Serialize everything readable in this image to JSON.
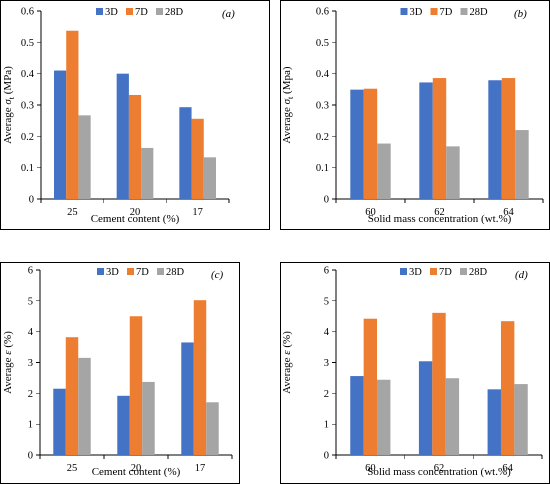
{
  "colors": {
    "3D": "#4472C4",
    "7D": "#ED7D31",
    "28D": "#A5A5A5"
  },
  "chart_data": [
    {
      "type": "bar",
      "panel": "(a)",
      "xlabel": "Cement content (%)",
      "ylabel_prefix": "Average ",
      "ylabel_symbol": "σ",
      "ylabel_sub": "t",
      "ylabel_suffix": " (MPa)",
      "categories": [
        "25",
        "20",
        "17"
      ],
      "ylim": [
        0,
        0.6
      ],
      "yticks": [
        "0",
        "0.1",
        "0.2",
        "0.3",
        "0.4",
        "0.5",
        "0.6"
      ],
      "legend_position": "top-center",
      "series": [
        {
          "name": "3D",
          "values": [
            0.41,
            0.4,
            0.293
          ]
        },
        {
          "name": "7D",
          "values": [
            0.537,
            0.332,
            0.256
          ]
        },
        {
          "name": "28D",
          "values": [
            0.267,
            0.163,
            0.133
          ]
        }
      ]
    },
    {
      "type": "bar",
      "panel": "(b)",
      "xlabel": "Solid mass concentration (wt.%)",
      "ylabel_prefix": "Average ",
      "ylabel_symbol": "σ",
      "ylabel_sub": "t",
      "ylabel_suffix": " (Mpa)",
      "categories": [
        "60",
        "62",
        "64"
      ],
      "ylim": [
        0,
        0.6
      ],
      "yticks": [
        "0",
        "0.1",
        "0.2",
        "0.3",
        "0.4",
        "0.5",
        "0.6"
      ],
      "legend_position": "top-center",
      "series": [
        {
          "name": "3D",
          "values": [
            0.349,
            0.372,
            0.379
          ]
        },
        {
          "name": "7D",
          "values": [
            0.352,
            0.386,
            0.386
          ]
        },
        {
          "name": "28D",
          "values": [
            0.177,
            0.168,
            0.22
          ]
        }
      ]
    },
    {
      "type": "bar",
      "panel": "(c)",
      "xlabel": "Cement content (%)",
      "ylabel_prefix": "Average ",
      "ylabel_symbol": "ε",
      "ylabel_sub": "",
      "ylabel_suffix": " (%)",
      "categories": [
        "25",
        "20",
        "17"
      ],
      "ylim": [
        0,
        6
      ],
      "yticks": [
        "0",
        "1",
        "2",
        "3",
        "4",
        "5",
        "6"
      ],
      "legend_position": "top-center",
      "series": [
        {
          "name": "3D",
          "values": [
            2.15,
            1.92,
            3.65
          ]
        },
        {
          "name": "7D",
          "values": [
            3.82,
            4.5,
            5.02
          ]
        },
        {
          "name": "28D",
          "values": [
            3.15,
            2.37,
            1.71
          ]
        }
      ]
    },
    {
      "type": "bar",
      "panel": "(d)",
      "xlabel": "Solid mass concentration (wt.%)",
      "ylabel_prefix": "Average ",
      "ylabel_symbol": "ε",
      "ylabel_sub": "",
      "ylabel_suffix": " (%)",
      "categories": [
        "60",
        "62",
        "64"
      ],
      "ylim": [
        0,
        6
      ],
      "yticks": [
        "0",
        "1",
        "2",
        "3",
        "4",
        "5",
        "6"
      ],
      "legend_position": "top-center",
      "series": [
        {
          "name": "3D",
          "values": [
            2.56,
            3.04,
            2.13
          ]
        },
        {
          "name": "7D",
          "values": [
            4.42,
            4.61,
            4.34
          ]
        },
        {
          "name": "28D",
          "values": [
            2.44,
            2.49,
            2.3
          ]
        }
      ]
    }
  ]
}
